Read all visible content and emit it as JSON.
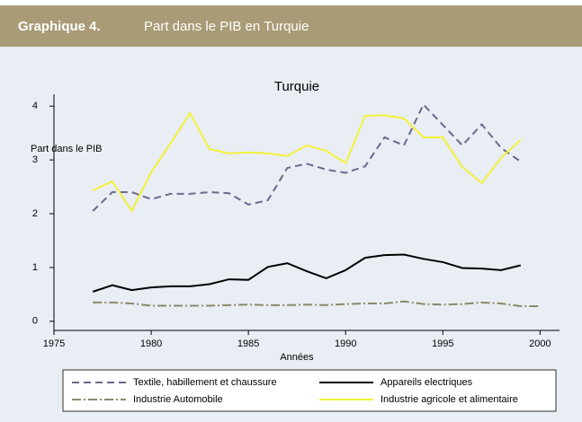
{
  "header": {
    "label": "Graphique 4.",
    "title": "Part dans le PIB en Turquie"
  },
  "chart_data": {
    "type": "line",
    "title": "Turquie",
    "x_label": "Années",
    "y_label": "Part dans le PIB",
    "x": [
      1977,
      1978,
      1979,
      1980,
      1981,
      1982,
      1983,
      1984,
      1985,
      1986,
      1987,
      1988,
      1989,
      1990,
      1991,
      1992,
      1993,
      1994,
      1995,
      1996,
      1997,
      1998,
      1999,
      2000
    ],
    "series": [
      {
        "name": "Textile, habillement et chaussure",
        "color": "#6a6a8c",
        "dash": "8,5",
        "values": [
          2.05,
          2.4,
          2.4,
          2.27,
          2.37,
          2.37,
          2.4,
          2.38,
          2.17,
          2.25,
          2.85,
          2.93,
          2.82,
          2.76,
          2.88,
          3.42,
          3.27,
          4.03,
          3.65,
          3.27,
          3.66,
          3.22,
          2.97,
          null
        ]
      },
      {
        "name": "Appareils electriques",
        "color": "#000000",
        "dash": "",
        "values": [
          0.55,
          0.67,
          0.58,
          0.63,
          0.65,
          0.65,
          0.69,
          0.78,
          0.77,
          1.01,
          1.08,
          0.93,
          0.8,
          0.95,
          1.18,
          1.23,
          1.24,
          1.16,
          1.1,
          0.99,
          0.98,
          0.95,
          1.04,
          null
        ]
      },
      {
        "name": "Industrie Automobile",
        "color": "#8a8a68",
        "dash": "10,3,2,3",
        "values": [
          0.35,
          0.35,
          0.33,
          0.29,
          0.29,
          0.29,
          0.29,
          0.3,
          0.31,
          0.3,
          0.3,
          0.31,
          0.3,
          0.32,
          0.33,
          0.33,
          0.37,
          0.32,
          0.31,
          0.32,
          0.35,
          0.33,
          0.28,
          0.28
        ]
      },
      {
        "name": "Industrie agricole et alimentaire",
        "color": "#f2f23a",
        "dash": "",
        "values": [
          2.43,
          2.6,
          2.05,
          2.77,
          3.31,
          3.87,
          3.2,
          3.12,
          3.14,
          3.12,
          3.07,
          3.27,
          3.17,
          2.94,
          3.82,
          3.83,
          3.77,
          3.42,
          3.42,
          2.87,
          2.57,
          3.04,
          3.37,
          null
        ]
      }
    ],
    "xlim": [
      1975,
      2001
    ],
    "xticks": [
      1975,
      1980,
      1985,
      1990,
      1995,
      2000
    ],
    "ylim": [
      -0.17,
      4.22
    ],
    "yticks": [
      0,
      1,
      2,
      3,
      4
    ],
    "grid": false
  }
}
